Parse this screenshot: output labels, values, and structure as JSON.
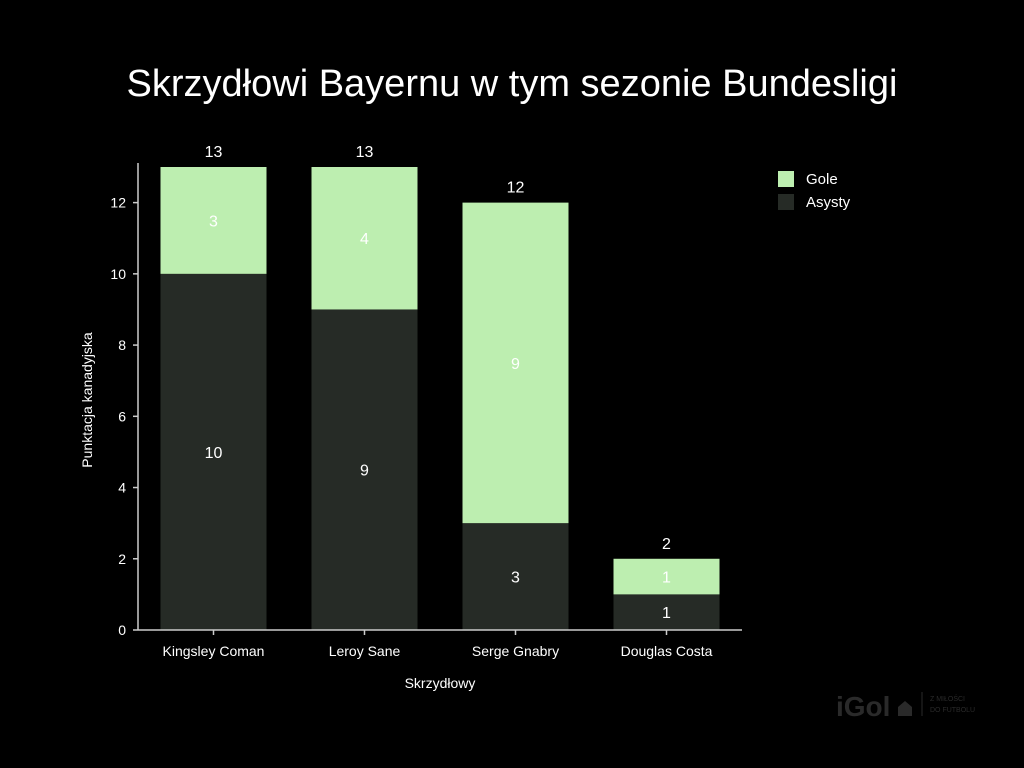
{
  "chart_data": {
    "type": "bar",
    "stacked": true,
    "title": "Skrzydłowi Bayernu w tym sezonie Bundesligi",
    "xlabel": "Skrzydłowy",
    "ylabel": "Punktacja kanadyjska",
    "categories": [
      "Kingsley Coman",
      "Leroy Sane",
      "Serge Gnabry",
      "Douglas Costa"
    ],
    "series": [
      {
        "name": "Asysty",
        "values": [
          10,
          9,
          3,
          1
        ],
        "color": "#262b26",
        "label_color": "#ffffff"
      },
      {
        "name": "Gole",
        "values": [
          3,
          4,
          9,
          1
        ],
        "color": "#bdeeb0",
        "label_color": "#ffffff"
      }
    ],
    "totals": [
      13,
      13,
      12,
      2
    ],
    "ylim": [
      0,
      13
    ],
    "yticks": [
      0,
      2,
      4,
      6,
      8,
      10,
      12
    ],
    "legend_position": "top-right",
    "legend_order": [
      "Gole",
      "Asysty"
    ],
    "grid": false
  },
  "colors": {
    "background": "#000000",
    "axis": "#cccccc",
    "text": "#ffffff"
  },
  "watermark": {
    "brand": "iGol",
    "tagline_line1": "Z MIŁOŚCI",
    "tagline_line2": "DO FUTBOLU"
  }
}
